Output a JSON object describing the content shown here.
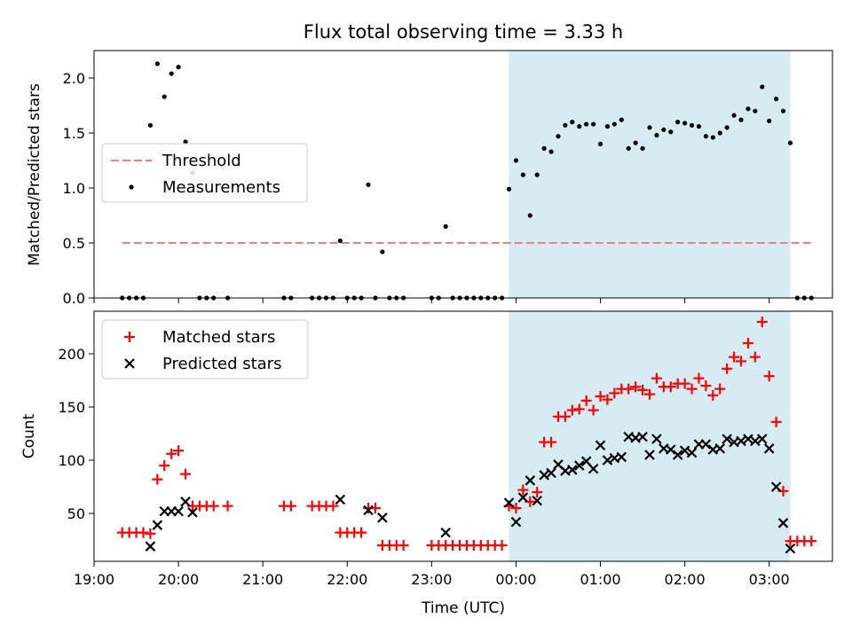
{
  "colors": {
    "threshold": "#f08080",
    "measurements": "#000000",
    "matched": "#ff0000",
    "predicted": "#000000",
    "span": "#add8e6"
  },
  "chart_data": [
    {
      "type": "scatter",
      "title": "Flux total observing time = 3.33 h",
      "xlabel": "",
      "ylabel": "Matched/Predicted stars",
      "xlim": [
        "19:00",
        "03:45"
      ],
      "ylim": [
        0,
        2.25
      ],
      "yticks": [
        "0.0",
        "0.5",
        "1.0",
        "1.5",
        "2.0"
      ],
      "grid": false,
      "legend": {
        "position": "center-left",
        "entries": [
          "Threshold",
          "Measurements"
        ]
      },
      "observing_span": {
        "start": "23:55",
        "end": "03:15"
      },
      "threshold": {
        "name": "Threshold",
        "y": 0.5,
        "x_start": "19:20",
        "x_end": "03:32"
      },
      "series": [
        {
          "name": "Measurements",
          "points": [
            [
              "19:20",
              0
            ],
            [
              "19:25",
              0
            ],
            [
              "19:30",
              0
            ],
            [
              "19:35",
              0
            ],
            [
              "19:40",
              1.57
            ],
            [
              "19:45",
              2.13
            ],
            [
              "19:50",
              1.83
            ],
            [
              "19:55",
              2.04
            ],
            [
              "20:00",
              2.1
            ],
            [
              "20:05",
              1.42
            ],
            [
              "20:10",
              1.14
            ],
            [
              "20:15",
              0
            ],
            [
              "20:20",
              0
            ],
            [
              "20:25",
              0
            ],
            [
              "20:35",
              0
            ],
            [
              "21:15",
              0
            ],
            [
              "21:20",
              0
            ],
            [
              "21:35",
              0
            ],
            [
              "21:40",
              0
            ],
            [
              "21:45",
              0
            ],
            [
              "21:50",
              0
            ],
            [
              "21:55",
              0.52
            ],
            [
              "22:00",
              0
            ],
            [
              "22:05",
              0
            ],
            [
              "22:10",
              0
            ],
            [
              "22:15",
              1.03
            ],
            [
              "22:20",
              0
            ],
            [
              "22:25",
              0.42
            ],
            [
              "22:30",
              0
            ],
            [
              "22:35",
              0
            ],
            [
              "22:40",
              0
            ],
            [
              "23:00",
              0
            ],
            [
              "23:05",
              0
            ],
            [
              "23:10",
              0.65
            ],
            [
              "23:15",
              0
            ],
            [
              "23:20",
              0
            ],
            [
              "23:25",
              0
            ],
            [
              "23:30",
              0
            ],
            [
              "23:35",
              0
            ],
            [
              "23:40",
              0
            ],
            [
              "23:45",
              0
            ],
            [
              "23:50",
              0
            ],
            [
              "23:55",
              0.99
            ],
            [
              "24:00",
              1.25
            ],
            [
              "24:05",
              1.12
            ],
            [
              "24:10",
              0.75
            ],
            [
              "24:15",
              1.12
            ],
            [
              "24:20",
              1.36
            ],
            [
              "24:25",
              1.33
            ],
            [
              "24:30",
              1.47
            ],
            [
              "24:35",
              1.57
            ],
            [
              "24:40",
              1.6
            ],
            [
              "24:45",
              1.56
            ],
            [
              "24:50",
              1.58
            ],
            [
              "24:55",
              1.58
            ],
            [
              "25:00",
              1.4
            ],
            [
              "25:05",
              1.56
            ],
            [
              "25:10",
              1.58
            ],
            [
              "25:15",
              1.62
            ],
            [
              "25:20",
              1.36
            ],
            [
              "25:25",
              1.41
            ],
            [
              "25:30",
              1.36
            ],
            [
              "25:35",
              1.55
            ],
            [
              "25:40",
              1.48
            ],
            [
              "25:45",
              1.53
            ],
            [
              "25:50",
              1.51
            ],
            [
              "25:55",
              1.6
            ],
            [
              "26:00",
              1.59
            ],
            [
              "26:05",
              1.57
            ],
            [
              "26:10",
              1.56
            ],
            [
              "26:15",
              1.47
            ],
            [
              "26:20",
              1.46
            ],
            [
              "26:25",
              1.5
            ],
            [
              "26:30",
              1.55
            ],
            [
              "26:35",
              1.66
            ],
            [
              "26:40",
              1.62
            ],
            [
              "26:45",
              1.72
            ],
            [
              "26:50",
              1.7
            ],
            [
              "26:55",
              1.92
            ],
            [
              "27:00",
              1.61
            ],
            [
              "27:05",
              1.81
            ],
            [
              "27:10",
              1.7
            ],
            [
              "27:15",
              1.41
            ],
            [
              "27:20",
              0
            ],
            [
              "27:25",
              0
            ],
            [
              "27:30",
              0
            ]
          ]
        }
      ]
    },
    {
      "type": "scatter",
      "xlabel": "Time (UTC)",
      "ylabel": "Count",
      "xlim": [
        "19:00",
        "03:45"
      ],
      "ylim": [
        5,
        240
      ],
      "xticks": [
        "19:00",
        "20:00",
        "21:00",
        "22:00",
        "23:00",
        "00:00",
        "01:00",
        "02:00",
        "03:00"
      ],
      "yticks": [
        "50",
        "100",
        "150",
        "200"
      ],
      "grid": false,
      "legend": {
        "position": "top-left",
        "entries": [
          "Matched stars",
          "Predicted stars"
        ]
      },
      "observing_span": {
        "start": "23:55",
        "end": "03:15"
      },
      "series": [
        {
          "name": "Matched stars",
          "marker": "+",
          "points": [
            [
              "19:20",
              32
            ],
            [
              "19:25",
              32
            ],
            [
              "19:30",
              32
            ],
            [
              "19:35",
              32
            ],
            [
              "19:40",
              31
            ],
            [
              "19:45",
              82
            ],
            [
              "19:50",
              95
            ],
            [
              "19:55",
              106
            ],
            [
              "20:00",
              109
            ],
            [
              "20:05",
              87
            ],
            [
              "20:10",
              57
            ],
            [
              "20:15",
              57
            ],
            [
              "20:20",
              57
            ],
            [
              "20:25",
              57
            ],
            [
              "20:35",
              57
            ],
            [
              "21:15",
              57
            ],
            [
              "21:20",
              57
            ],
            [
              "21:35",
              57
            ],
            [
              "21:40",
              57
            ],
            [
              "21:45",
              57
            ],
            [
              "21:50",
              57
            ],
            [
              "21:55",
              32
            ],
            [
              "22:00",
              32
            ],
            [
              "22:05",
              32
            ],
            [
              "22:10",
              32
            ],
            [
              "22:15",
              55
            ],
            [
              "22:20",
              55
            ],
            [
              "22:25",
              20
            ],
            [
              "22:30",
              20
            ],
            [
              "22:35",
              20
            ],
            [
              "22:40",
              20
            ],
            [
              "23:00",
              20
            ],
            [
              "23:05",
              20
            ],
            [
              "23:10",
              20
            ],
            [
              "23:15",
              20
            ],
            [
              "23:20",
              20
            ],
            [
              "23:25",
              20
            ],
            [
              "23:30",
              20
            ],
            [
              "23:35",
              20
            ],
            [
              "23:40",
              20
            ],
            [
              "23:45",
              20
            ],
            [
              "23:50",
              20
            ],
            [
              "23:55",
              57
            ],
            [
              "24:00",
              55
            ],
            [
              "24:05",
              72
            ],
            [
              "24:10",
              61
            ],
            [
              "24:15",
              70
            ],
            [
              "24:20",
              117
            ],
            [
              "24:25",
              117
            ],
            [
              "24:30",
              141
            ],
            [
              "24:35",
              141
            ],
            [
              "24:40",
              147
            ],
            [
              "24:45",
              148
            ],
            [
              "24:50",
              156
            ],
            [
              "24:55",
              147
            ],
            [
              "25:00",
              160
            ],
            [
              "25:05",
              157
            ],
            [
              "25:10",
              163
            ],
            [
              "25:15",
              167
            ],
            [
              "25:20",
              167
            ],
            [
              "25:25",
              169
            ],
            [
              "25:30",
              166
            ],
            [
              "25:35",
              162
            ],
            [
              "25:40",
              177
            ],
            [
              "25:45",
              169
            ],
            [
              "25:50",
              169
            ],
            [
              "25:55",
              172
            ],
            [
              "26:00",
              172
            ],
            [
              "26:05",
              167
            ],
            [
              "26:10",
              177
            ],
            [
              "26:15",
              170
            ],
            [
              "26:20",
              161
            ],
            [
              "26:25",
              167
            ],
            [
              "26:30",
              186
            ],
            [
              "26:35",
              197
            ],
            [
              "26:40",
              193
            ],
            [
              "26:45",
              210
            ],
            [
              "26:50",
              197
            ],
            [
              "26:55",
              230
            ],
            [
              "27:00",
              179
            ],
            [
              "27:05",
              136
            ],
            [
              "27:10",
              71
            ],
            [
              "27:15",
              24
            ],
            [
              "27:20",
              24
            ],
            [
              "27:25",
              24
            ],
            [
              "27:30",
              24
            ]
          ]
        },
        {
          "name": "Predicted stars",
          "marker": "x",
          "points": [
            [
              "19:40",
              19
            ],
            [
              "19:45",
              39
            ],
            [
              "19:50",
              52
            ],
            [
              "19:55",
              52
            ],
            [
              "20:00",
              52
            ],
            [
              "20:05",
              61
            ],
            [
              "20:10",
              51
            ],
            [
              "21:55",
              63
            ],
            [
              "22:15",
              53
            ],
            [
              "22:25",
              46
            ],
            [
              "23:10",
              32
            ],
            [
              "23:55",
              60
            ],
            [
              "24:00",
              42
            ],
            [
              "24:05",
              65
            ],
            [
              "24:10",
              81
            ],
            [
              "24:15",
              62
            ],
            [
              "24:20",
              86
            ],
            [
              "24:25",
              88
            ],
            [
              "24:30",
              96
            ],
            [
              "24:35",
              90
            ],
            [
              "24:40",
              91
            ],
            [
              "24:45",
              95
            ],
            [
              "24:50",
              99
            ],
            [
              "24:55",
              92
            ],
            [
              "25:00",
              114
            ],
            [
              "25:05",
              100
            ],
            [
              "25:10",
              102
            ],
            [
              "25:15",
              103
            ],
            [
              "25:20",
              122
            ],
            [
              "25:25",
              121
            ],
            [
              "25:30",
              122
            ],
            [
              "25:35",
              105
            ],
            [
              "25:40",
              120
            ],
            [
              "25:45",
              111
            ],
            [
              "25:50",
              110
            ],
            [
              "25:55",
              105
            ],
            [
              "26:00",
              109
            ],
            [
              "26:05",
              107
            ],
            [
              "26:10",
              115
            ],
            [
              "26:15",
              115
            ],
            [
              "26:20",
              110
            ],
            [
              "26:25",
              111
            ],
            [
              "26:30",
              120
            ],
            [
              "26:35",
              117
            ],
            [
              "26:40",
              118
            ],
            [
              "26:45",
              120
            ],
            [
              "26:50",
              118
            ],
            [
              "26:55",
              120
            ],
            [
              "27:00",
              111
            ],
            [
              "27:05",
              75
            ],
            [
              "27:10",
              41
            ],
            [
              "27:15",
              17
            ]
          ]
        }
      ]
    }
  ]
}
